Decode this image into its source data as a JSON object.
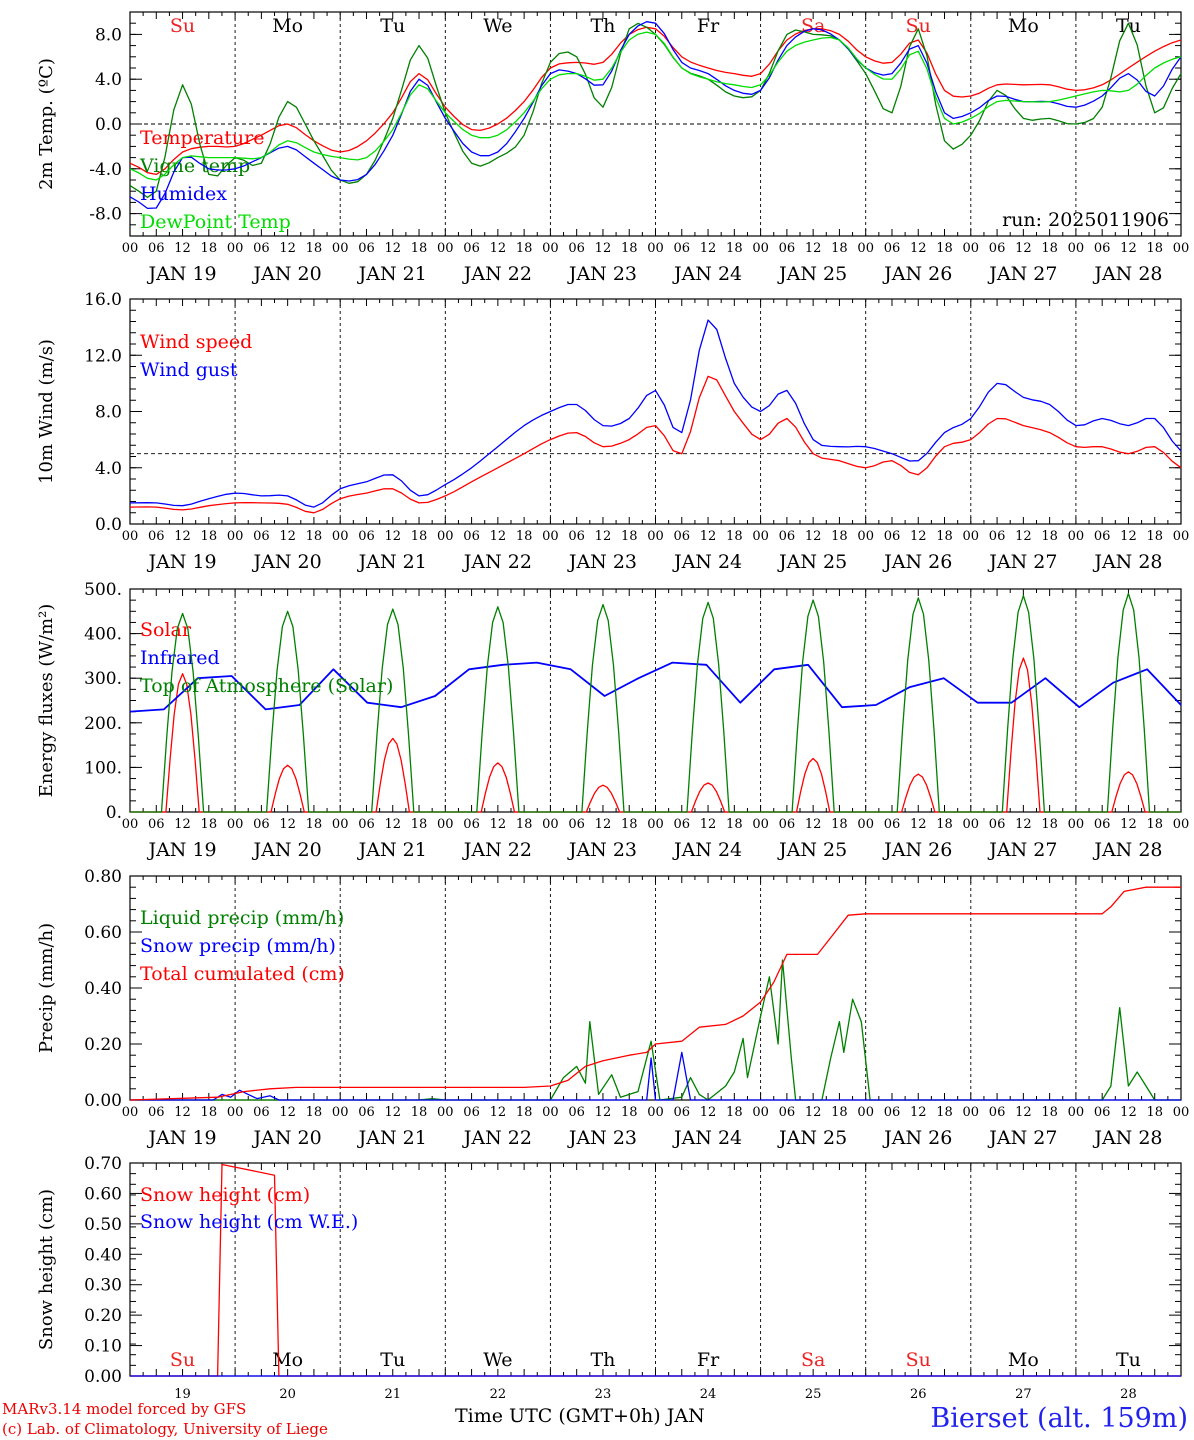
{
  "days": [
    {
      "abbr": "Su",
      "date": "JAN 19",
      "num": "19",
      "weekend": true
    },
    {
      "abbr": "Mo",
      "date": "JAN 20",
      "num": "20",
      "weekend": false
    },
    {
      "abbr": "Tu",
      "date": "JAN 21",
      "num": "21",
      "weekend": false
    },
    {
      "abbr": "We",
      "date": "JAN 22",
      "num": "22",
      "weekend": false
    },
    {
      "abbr": "Th",
      "date": "JAN 23",
      "num": "23",
      "weekend": false
    },
    {
      "abbr": "Fr",
      "date": "JAN 24",
      "num": "24",
      "weekend": false
    },
    {
      "abbr": "Sa",
      "date": "JAN 25",
      "num": "25",
      "weekend": true
    },
    {
      "abbr": "Su",
      "date": "JAN 26",
      "num": "26",
      "weekend": true
    },
    {
      "abbr": "Mo",
      "date": "JAN 27",
      "num": "27",
      "weekend": false
    },
    {
      "abbr": "Tu",
      "date": "JAN 28",
      "num": "28",
      "weekend": false
    }
  ],
  "hour_ticks": [
    "00",
    "06",
    "12",
    "18"
  ],
  "weekend_color": "#ee2222",
  "footer": {
    "credit_line1": "MARv3.14 model forced by GFS",
    "credit_line2": "(c) Lab. of Climatology, University of Liege",
    "axis_title": "Time UTC (GMT+0h) JAN",
    "station": "Bierset (alt. 159m)"
  },
  "chart_data": [
    {
      "id": "temperature",
      "type": "line",
      "ylabel": "2m Temp. (ºC)",
      "ylim": [
        -10,
        10
      ],
      "yticks": [
        8,
        4,
        0,
        -4,
        -8
      ],
      "yticklabels": [
        "8.0",
        "4.0",
        "0.0",
        "-4.0",
        "-8.0"
      ],
      "ref_line": 0,
      "annotation": "run: 2025011906",
      "x_hours": [
        0,
        6,
        12,
        18,
        24,
        30,
        36,
        42,
        48,
        54,
        60,
        66,
        72,
        78,
        84,
        90,
        96,
        102,
        108,
        114,
        120,
        126,
        132,
        138,
        144,
        150,
        156,
        162,
        168,
        174,
        180,
        186,
        192,
        198,
        204,
        210,
        216,
        222,
        228,
        234,
        240
      ],
      "series": [
        {
          "name": "Temperature",
          "color": "#ff0000",
          "values": [
            -3.5,
            -4.5,
            -2.5,
            -2.0,
            -2.0,
            -1.0,
            0.0,
            -1.5,
            -2.5,
            -1.5,
            1.0,
            4.5,
            1.5,
            -0.5,
            0.0,
            2.0,
            5.0,
            5.5,
            5.5,
            8.0,
            8.5,
            6.0,
            5.0,
            4.5,
            4.5,
            7.5,
            8.5,
            8.0,
            6.0,
            5.5,
            7.5,
            3.0,
            2.5,
            3.5,
            3.5,
            3.5,
            3.0,
            3.5,
            5.0,
            6.5,
            7.5
          ]
        },
        {
          "name": "Vigne temp",
          "color": "#008000",
          "values": [
            -5.5,
            -6.0,
            3.5,
            -4.5,
            -3.0,
            -3.5,
            2.0,
            -1.5,
            -5.0,
            -4.5,
            0.5,
            7.0,
            1.0,
            -3.5,
            -3.0,
            -1.0,
            5.5,
            6.0,
            1.5,
            8.5,
            8.0,
            5.0,
            4.0,
            2.5,
            3.0,
            8.0,
            8.0,
            7.5,
            4.5,
            1.0,
            8.5,
            -1.5,
            -1.0,
            3.0,
            0.5,
            0.5,
            0.0,
            1.5,
            9.0,
            1.0,
            4.5
          ]
        },
        {
          "name": "Humidex",
          "color": "#0000ff",
          "values": [
            -6.5,
            -7.5,
            -3.0,
            -4.0,
            -4.0,
            -3.0,
            -2.0,
            -3.5,
            -5.0,
            -4.5,
            -1.0,
            4.0,
            0.5,
            -2.5,
            -2.5,
            0.5,
            4.5,
            4.5,
            3.5,
            8.0,
            9.0,
            5.5,
            4.5,
            3.0,
            3.0,
            7.0,
            8.5,
            7.5,
            5.0,
            4.5,
            7.0,
            1.0,
            1.0,
            2.5,
            2.0,
            2.0,
            1.5,
            2.5,
            4.5,
            2.5,
            6.0
          ]
        },
        {
          "name": "DewPoint Temp",
          "color": "#00dd00",
          "values": [
            -4.0,
            -5.0,
            -3.0,
            -3.0,
            -3.0,
            -3.0,
            -1.5,
            -2.5,
            -3.0,
            -3.0,
            -0.5,
            3.5,
            1.0,
            -1.0,
            -1.0,
            1.0,
            4.0,
            4.5,
            4.0,
            7.5,
            8.0,
            5.0,
            4.0,
            3.5,
            3.5,
            6.5,
            7.5,
            7.5,
            5.0,
            4.0,
            6.5,
            0.5,
            0.5,
            2.0,
            2.0,
            2.0,
            2.5,
            3.0,
            3.0,
            5.0,
            6.0
          ]
        }
      ]
    },
    {
      "id": "wind",
      "type": "line",
      "ylabel": "10m Wind (m/s)",
      "ylim": [
        0,
        16
      ],
      "yticks": [
        16,
        12,
        8,
        4,
        0
      ],
      "yticklabels": [
        "16.0",
        "12.0",
        "8.0",
        "4.0",
        "0.0"
      ],
      "ref_line": 5,
      "x_hours": [
        0,
        6,
        12,
        18,
        24,
        30,
        36,
        42,
        48,
        54,
        60,
        66,
        72,
        78,
        84,
        90,
        96,
        102,
        108,
        114,
        120,
        126,
        132,
        138,
        144,
        150,
        156,
        162,
        168,
        174,
        180,
        186,
        192,
        198,
        204,
        210,
        216,
        222,
        228,
        234,
        240
      ],
      "series": [
        {
          "name": "Wind speed",
          "color": "#ff0000",
          "values": [
            1.2,
            1.2,
            1.0,
            1.3,
            1.5,
            1.5,
            1.4,
            0.8,
            1.8,
            2.2,
            2.5,
            1.5,
            2.0,
            3.0,
            4.0,
            5.0,
            6.0,
            6.5,
            5.5,
            6.0,
            7.0,
            5.0,
            10.5,
            8.0,
            6.0,
            7.5,
            5.0,
            4.5,
            4.0,
            4.5,
            3.5,
            5.5,
            6.0,
            7.5,
            7.0,
            6.5,
            5.5,
            5.5,
            5.0,
            5.5,
            4.0
          ]
        },
        {
          "name": "Wind gust",
          "color": "#0000ff",
          "values": [
            1.5,
            1.5,
            1.3,
            1.8,
            2.2,
            2.0,
            2.0,
            1.2,
            2.5,
            3.0,
            3.5,
            2.0,
            2.8,
            4.0,
            5.5,
            7.0,
            8.0,
            8.5,
            7.0,
            7.5,
            9.5,
            6.5,
            14.5,
            10.0,
            8.0,
            9.5,
            6.0,
            5.5,
            5.5,
            5.0,
            4.5,
            6.5,
            7.5,
            10.0,
            9.0,
            8.5,
            7.0,
            7.5,
            7.0,
            7.5,
            5.2
          ]
        }
      ]
    },
    {
      "id": "energy",
      "type": "line",
      "ylabel": "Energy fluxes (W/m²)",
      "ylim": [
        0,
        500
      ],
      "yticks": [
        500,
        400,
        300,
        200,
        100,
        0
      ],
      "yticklabels": [
        "500.",
        "400.",
        "300.",
        "200.",
        "100.",
        "0."
      ],
      "series": [
        {
          "name": "Solar",
          "color": "#ff0000",
          "peaks": [
            310,
            105,
            165,
            110,
            60,
            65,
            120,
            85,
            345,
            90
          ]
        },
        {
          "name": "Infrared",
          "color": "#0000ff",
          "values": [
            225,
            230,
            300,
            305,
            230,
            240,
            320,
            245,
            235,
            260,
            320,
            330,
            335,
            320,
            260,
            300,
            335,
            330,
            245,
            320,
            330,
            235,
            240,
            280,
            300,
            245,
            245,
            300,
            235,
            290,
            320,
            240
          ]
        },
        {
          "name": "Top of Atmosphere (Solar)",
          "color": "#008000",
          "peaks": [
            445,
            450,
            455,
            460,
            465,
            470,
            475,
            480,
            485,
            490
          ]
        }
      ]
    },
    {
      "id": "precip",
      "type": "line",
      "ylabel": "Precip (mm/h)",
      "ylim": [
        0,
        0.8
      ],
      "yticks": [
        0.8,
        0.6,
        0.4,
        0.2,
        0.0
      ],
      "yticklabels": [
        "0.80",
        "0.60",
        "0.40",
        "0.20",
        "0.00"
      ],
      "series": [
        {
          "name": "Liquid precip (mm/h)",
          "color": "#008000",
          "points": [
            [
              0,
              0
            ],
            [
              66,
              0
            ],
            [
              69,
              0.005
            ],
            [
              72,
              0
            ],
            [
              96,
              0
            ],
            [
              99,
              0.08
            ],
            [
              102,
              0.12
            ],
            [
              104,
              0.06
            ],
            [
              105,
              0.28
            ],
            [
              107,
              0.02
            ],
            [
              110,
              0.09
            ],
            [
              112,
              0.01
            ],
            [
              116,
              0.03
            ],
            [
              119,
              0.21
            ],
            [
              121,
              0
            ],
            [
              126,
              0.01
            ],
            [
              128,
              0.08
            ],
            [
              130,
              0.02
            ],
            [
              132,
              0
            ],
            [
              136,
              0.05
            ],
            [
              138,
              0.1
            ],
            [
              140,
              0.22
            ],
            [
              141,
              0.08
            ],
            [
              144,
              0.3
            ],
            [
              146,
              0.44
            ],
            [
              148,
              0.2
            ],
            [
              149,
              0.5
            ],
            [
              151,
              0.15
            ],
            [
              152,
              0
            ],
            [
              158,
              0
            ],
            [
              160,
              0.15
            ],
            [
              162,
              0.28
            ],
            [
              163,
              0.17
            ],
            [
              165,
              0.36
            ],
            [
              167,
              0.28
            ],
            [
              169,
              0
            ],
            [
              222,
              0
            ],
            [
              224,
              0.05
            ],
            [
              226,
              0.33
            ],
            [
              228,
              0.05
            ],
            [
              230,
              0.1
            ],
            [
              232,
              0.05
            ],
            [
              234,
              0
            ],
            [
              240,
              0
            ]
          ]
        },
        {
          "name": "Snow precip (mm/h)",
          "color": "#0000ff",
          "points": [
            [
              0,
              0
            ],
            [
              19,
              0
            ],
            [
              21,
              0.02
            ],
            [
              23,
              0.01
            ],
            [
              25,
              0.035
            ],
            [
              27,
              0.02
            ],
            [
              29,
              0.005
            ],
            [
              32,
              0.015
            ],
            [
              34,
              0
            ],
            [
              118,
              0
            ],
            [
              119,
              0.15
            ],
            [
              120,
              0
            ],
            [
              124,
              0
            ],
            [
              126,
              0.17
            ],
            [
              128,
              0
            ],
            [
              240,
              0
            ]
          ]
        },
        {
          "name": "Total cumulated (cm)",
          "color": "#ff0000",
          "points": [
            [
              0,
              0
            ],
            [
              20,
              0.01
            ],
            [
              26,
              0.03
            ],
            [
              32,
              0.04
            ],
            [
              38,
              0.045
            ],
            [
              90,
              0.045
            ],
            [
              96,
              0.05
            ],
            [
              100,
              0.07
            ],
            [
              104,
              0.12
            ],
            [
              108,
              0.14
            ],
            [
              114,
              0.16
            ],
            [
              118,
              0.17
            ],
            [
              120,
              0.2
            ],
            [
              126,
              0.21
            ],
            [
              130,
              0.26
            ],
            [
              136,
              0.27
            ],
            [
              140,
              0.3
            ],
            [
              144,
              0.35
            ],
            [
              147,
              0.42
            ],
            [
              150,
              0.52
            ],
            [
              152,
              0.52
            ],
            [
              157,
              0.52
            ],
            [
              160,
              0.58
            ],
            [
              164,
              0.66
            ],
            [
              168,
              0.665
            ],
            [
              222,
              0.665
            ],
            [
              224,
              0.69
            ],
            [
              227,
              0.745
            ],
            [
              232,
              0.76
            ],
            [
              240,
              0.76
            ]
          ]
        }
      ]
    },
    {
      "id": "snow",
      "type": "line",
      "ylabel": "Snow height (cm)",
      "ylim": [
        0,
        0.7
      ],
      "yticks": [
        0.7,
        0.6,
        0.5,
        0.4,
        0.3,
        0.2,
        0.1,
        0.0
      ],
      "yticklabels": [
        "0.70",
        "0.60",
        "0.50",
        "0.40",
        "0.30",
        "0.20",
        "0.10",
        "0.00"
      ],
      "series": [
        {
          "name": "Snow height (cm)",
          "color": "#ff0000",
          "points": [
            [
              0,
              0
            ],
            [
              20,
              0
            ],
            [
              21,
              0.695
            ],
            [
              33,
              0.66
            ],
            [
              34,
              0
            ],
            [
              240,
              0
            ]
          ]
        },
        {
          "name": "Snow height (cm W.E.)",
          "color": "#0000ff",
          "points": [
            [
              0,
              0
            ],
            [
              240,
              0
            ]
          ]
        }
      ]
    }
  ]
}
